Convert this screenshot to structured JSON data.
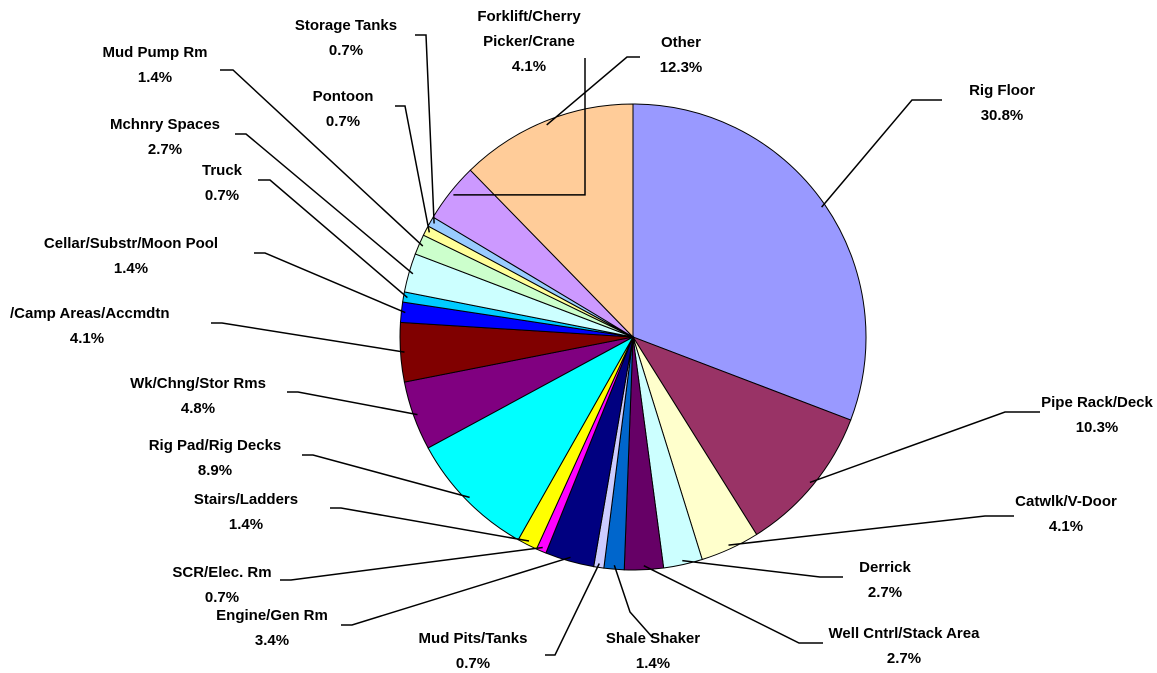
{
  "chart_data": {
    "type": "pie",
    "start_angle_deg": 90,
    "direction": "clockwise",
    "slices": [
      {
        "name": "Rig Floor",
        "value": 30.8,
        "label": "30.8%",
        "color": "#9999FF"
      },
      {
        "name": "Pipe Rack/Deck",
        "value": 10.3,
        "label": "10.3%",
        "color": "#993366"
      },
      {
        "name": "Catwlk/V-Door",
        "value": 4.1,
        "label": "4.1%",
        "color": "#FFFFCC"
      },
      {
        "name": "Derrick",
        "value": 2.7,
        "label": "2.7%",
        "color": "#CCFFFF"
      },
      {
        "name": "Well Cntrl/Stack Area",
        "value": 2.7,
        "label": "2.7%",
        "color": "#660066"
      },
      {
        "name": "Shale Shaker",
        "value": 1.4,
        "label": "1.4%",
        "color": "#0066CC"
      },
      {
        "name": "Mud Pits/Tanks",
        "value": 0.7,
        "label": "0.7%",
        "color": "#CCCCFF"
      },
      {
        "name": "Engine/Gen Rm",
        "value": 3.4,
        "label": "3.4%",
        "color": "#000080"
      },
      {
        "name": "SCR/Elec. Rm",
        "value": 0.7,
        "label": "0.7%",
        "color": "#FF00FF"
      },
      {
        "name": "Stairs/Ladders",
        "value": 1.4,
        "label": "1.4%",
        "color": "#FFFF00"
      },
      {
        "name": "Rig Pad/Rig Decks",
        "value": 8.9,
        "label": "8.9%",
        "color": "#00FFFF"
      },
      {
        "name": "Wk/Chng/Stor Rms",
        "value": 4.8,
        "label": "4.8%",
        "color": "#800080"
      },
      {
        "name": "/Camp Areas/Accmdtn",
        "value": 4.1,
        "label": "4.1%",
        "color": "#800000"
      },
      {
        "name": "Cellar/Substr/Moon Pool",
        "value": 1.4,
        "label": "1.4%",
        "color": "#0000FF"
      },
      {
        "name": "Truck",
        "value": 0.7,
        "label": "0.7%",
        "color": "#00CCFF"
      },
      {
        "name": "Mchnry Spaces",
        "value": 2.7,
        "label": "2.7%",
        "color": "#CCFFFF"
      },
      {
        "name": "Mud Pump Rm",
        "value": 1.4,
        "label": "1.4%",
        "color": "#CCFFCC"
      },
      {
        "name": "Pontoon",
        "value": 0.7,
        "label": "0.7%",
        "color": "#FFFF99"
      },
      {
        "name": "Storage Tanks",
        "value": 0.7,
        "label": "0.7%",
        "color": "#99CCFF"
      },
      {
        "name": "Forklift/Cherry Picker/Crane",
        "value": 4.1,
        "label": "4.1%",
        "color": "#CC99FF"
      },
      {
        "name": "Other",
        "value": 12.3,
        "label": "12.3%",
        "color": "#FFCC99"
      }
    ]
  }
}
